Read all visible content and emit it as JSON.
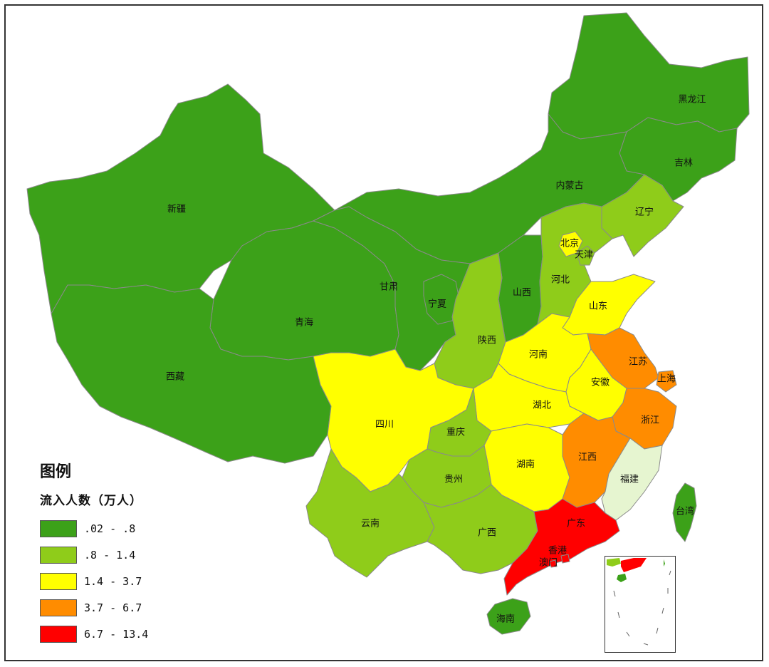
{
  "legend": {
    "title": "图例",
    "subtitle": "流入人数（万人）",
    "classes": [
      {
        "range": ".02 - .8",
        "color": "#3ca119"
      },
      {
        "range": ".8 - 1.4",
        "color": "#8fcc1a"
      },
      {
        "range": "1.4 - 3.7",
        "color": "#ffff00"
      },
      {
        "range": "3.7 - 6.7",
        "color": "#ff8c00"
      },
      {
        "range": "6.7 - 13.4",
        "color": "#ff0000"
      }
    ]
  },
  "fujian_color": "#e6f5d0",
  "provinces": [
    {
      "name": "黑龙江",
      "class": 0
    },
    {
      "name": "吉林",
      "class": 0
    },
    {
      "name": "辽宁",
      "class": 1
    },
    {
      "name": "内蒙古",
      "class": 0
    },
    {
      "name": "新疆",
      "class": 0
    },
    {
      "name": "甘肃",
      "class": 0
    },
    {
      "name": "宁夏",
      "class": 0
    },
    {
      "name": "青海",
      "class": 0
    },
    {
      "name": "西藏",
      "class": 0
    },
    {
      "name": "北京",
      "class": 2
    },
    {
      "name": "天津",
      "class": 1
    },
    {
      "name": "河北",
      "class": 1
    },
    {
      "name": "山西",
      "class": 0
    },
    {
      "name": "山东",
      "class": 2
    },
    {
      "name": "陕西",
      "class": 1
    },
    {
      "name": "河南",
      "class": 2
    },
    {
      "name": "江苏",
      "class": 3
    },
    {
      "name": "上海",
      "class": 3
    },
    {
      "name": "安徽",
      "class": 2
    },
    {
      "name": "湖北",
      "class": 2
    },
    {
      "name": "四川",
      "class": 2
    },
    {
      "name": "重庆",
      "class": 1
    },
    {
      "name": "浙江",
      "class": 3
    },
    {
      "name": "湖南",
      "class": 2
    },
    {
      "name": "江西",
      "class": 3
    },
    {
      "name": "福建",
      "class": 5
    },
    {
      "name": "贵州",
      "class": 1
    },
    {
      "name": "云南",
      "class": 1
    },
    {
      "name": "广西",
      "class": 1
    },
    {
      "name": "广东",
      "class": 4
    },
    {
      "name": "香港",
      "class": 4
    },
    {
      "name": "澳门",
      "class": 4
    },
    {
      "name": "台湾",
      "class": 0
    },
    {
      "name": "海南",
      "class": 0
    }
  ]
}
